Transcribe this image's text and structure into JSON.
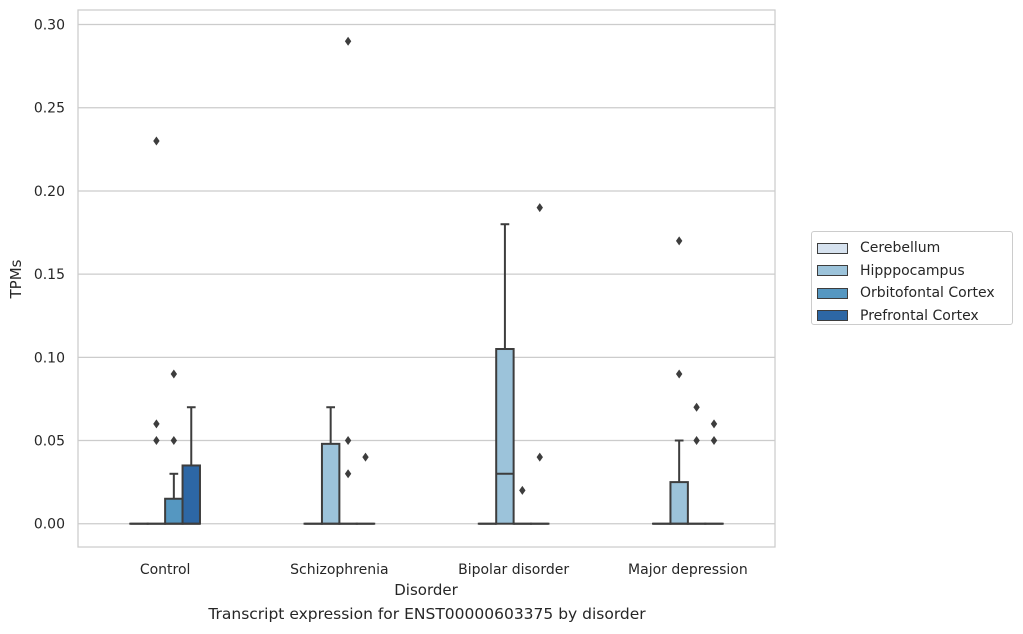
{
  "chart_data": {
    "type": "box",
    "title": "Transcript expression for ENST00000603375 by disorder",
    "xlabel": "Disorder",
    "ylabel": "TPMs",
    "ylim": [
      -0.014,
      0.30875
    ],
    "yticks": [
      "0.00",
      "0.05",
      "0.10",
      "0.15",
      "0.20",
      "0.25",
      "0.30"
    ],
    "grid": true,
    "legend_placement": "center-right",
    "categories": [
      "Control",
      "Schizophrenia",
      "Bipolar disorder",
      "Major depression"
    ],
    "series": [
      {
        "name": "Cerebellum",
        "color": "#d6e2ef",
        "boxes": [
          {
            "q1": 0,
            "median": 0,
            "q3": 0,
            "whislo": 0,
            "whishi": 0,
            "fliers": []
          },
          {
            "q1": 0,
            "median": 0,
            "q3": 0,
            "whislo": 0,
            "whishi": 0,
            "fliers": []
          },
          {
            "q1": 0,
            "median": 0,
            "q3": 0,
            "whislo": 0,
            "whishi": 0,
            "fliers": []
          },
          {
            "q1": 0,
            "median": 0,
            "q3": 0,
            "whislo": 0,
            "whishi": 0,
            "fliers": []
          }
        ]
      },
      {
        "name": "Hipppocampus",
        "color": "#9cc3da",
        "boxes": [
          {
            "q1": 0,
            "median": 0,
            "q3": 0,
            "whislo": 0,
            "whishi": 0,
            "fliers": [
              0.23,
              0.06,
              0.05
            ]
          },
          {
            "q1": 0,
            "median": 0,
            "q3": 0.048,
            "whislo": 0,
            "whishi": 0.07,
            "fliers": []
          },
          {
            "q1": 0,
            "median": 0.03,
            "q3": 0.105,
            "whislo": 0,
            "whishi": 0.18,
            "fliers": []
          },
          {
            "q1": 0,
            "median": 0,
            "q3": 0.025,
            "whislo": 0,
            "whishi": 0.05,
            "fliers": [
              0.17,
              0.09
            ]
          }
        ]
      },
      {
        "name": "Orbitofontal Cortex",
        "color": "#5597c1",
        "boxes": [
          {
            "q1": 0,
            "median": 0,
            "q3": 0.015,
            "whislo": 0,
            "whishi": 0.03,
            "fliers": [
              0.09,
              0.05
            ]
          },
          {
            "q1": 0,
            "median": 0,
            "q3": 0,
            "whislo": 0,
            "whishi": 0,
            "fliers": [
              0.29,
              0.05,
              0.03
            ]
          },
          {
            "q1": 0,
            "median": 0,
            "q3": 0,
            "whislo": 0,
            "whishi": 0,
            "fliers": [
              0.02
            ]
          },
          {
            "q1": 0,
            "median": 0,
            "q3": 0,
            "whislo": 0,
            "whishi": 0,
            "fliers": [
              0.07,
              0.05
            ]
          }
        ]
      },
      {
        "name": "Prefrontal Cortex",
        "color": "#2d67a5",
        "boxes": [
          {
            "q1": 0,
            "median": 0,
            "q3": 0.035,
            "whislo": 0,
            "whishi": 0.07,
            "fliers": []
          },
          {
            "q1": 0,
            "median": 0,
            "q3": 0,
            "whislo": 0,
            "whishi": 0,
            "fliers": [
              0.04
            ]
          },
          {
            "q1": 0,
            "median": 0,
            "q3": 0,
            "whislo": 0,
            "whishi": 0,
            "fliers": [
              0.19,
              0.04
            ]
          },
          {
            "q1": 0,
            "median": 0,
            "q3": 0,
            "whislo": 0,
            "whishi": 0,
            "fliers": [
              0.06,
              0.05
            ]
          }
        ]
      }
    ]
  }
}
